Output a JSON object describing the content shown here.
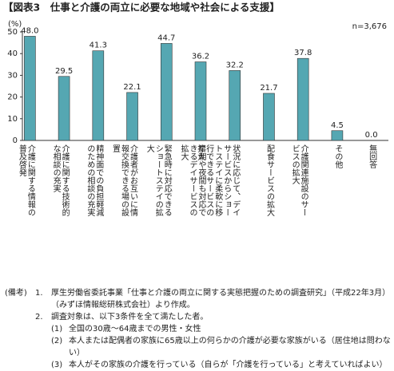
{
  "chart_data": {
    "type": "bar",
    "title": "【図表3　仕事と介護の両立に必要な地域や社会による支援】",
    "y_label": "(%)",
    "annotation": "n=3,676",
    "categories": [
      "介護に関する情報の普及啓発",
      "介護に関する技術的な相談の充実",
      "精神面での負担軽減のための相談の充実",
      "介護者がお互いに情報交換できる場の設置",
      "緊急時に対応できるショートステイの拡大",
      "早朝や夜間も対応できるデイサービスの拡大",
      "状況に応じて、デイサービスからショートステイに柔軟に移行できるサービスの拡大",
      "配食サービスの拡大",
      "介護関連施設のサービスの拡大",
      "その他",
      "無回答"
    ],
    "values": [
      48.0,
      29.5,
      41.3,
      22.1,
      44.7,
      36.2,
      32.2,
      21.7,
      37.8,
      4.5,
      0.0
    ],
    "value_labels": [
      "48.0",
      "29.5",
      "41.3",
      "22.1",
      "44.7",
      "36.2",
      "32.2",
      "21.7",
      "37.8",
      "4.5",
      "0.0"
    ],
    "color": "#55a7b2",
    "ylim": [
      0,
      50
    ],
    "yticks": [
      0,
      10,
      20,
      30,
      40,
      50
    ],
    "grid": false
  },
  "notes": {
    "label": "(備考)",
    "items": [
      {
        "number": "1.",
        "text": "厚生労働省委託事業「仕事と介護の両立に関する実態把握のための調査研究」（平成22年3月）（みずほ情報総研株式会社）より作成。"
      },
      {
        "number": "2.",
        "text": "調査対象は、以下3条件を全て満たした者。",
        "subitems": [
          {
            "number": "(1)",
            "text": "全国の30歳～64歳までの男性・女性"
          },
          {
            "number": "(2)",
            "text": "本人または配偶者の家族に65歳以上の何らかの介護が必要な家族がいる（居住地は問わない）"
          },
          {
            "number": "(3)",
            "text": "本人がその家族の介護を行っている（自らが「介護を行っている」と考えていればよい）"
          }
        ]
      }
    ]
  }
}
